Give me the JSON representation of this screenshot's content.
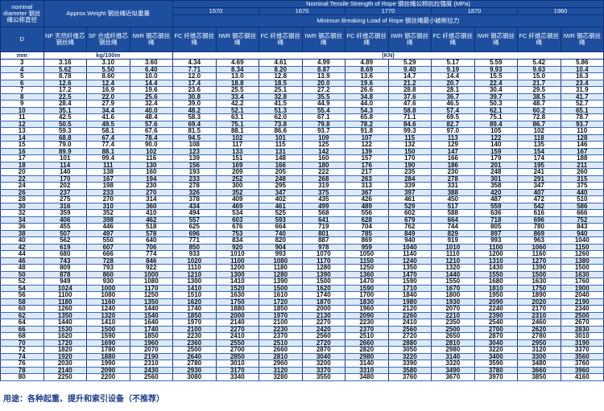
{
  "header": {
    "diameter_label": "nominal diameter 钢丝绳公称直径",
    "weight_label": "Approx.Weight 钢丝绳近似重量",
    "tensile_label": "Nominal Tensile Strength of Rope 钢丝绳公称抗拉强度 (MPa)",
    "grades": [
      "1570",
      "1670",
      "1770",
      "1870",
      "1960"
    ],
    "breaking_label": "Minimun Breaking Load of Rope 钢丝绳最小破断拉力",
    "columns": [
      "D",
      "NF 天然纤维芯钢丝绳",
      "SF 合成纤维芯钢丝绳",
      "IWR 钢芯钢丝绳",
      "FC 纤维芯钢丝绳",
      "IWR 钢芯钢丝绳",
      "FC 纤维芯钢丝绳",
      "IWR 钢芯钢丝绳",
      "FC 纤维芯钢丝绳",
      "IWR 钢芯钢丝绳",
      "FC 纤维芯钢丝绳",
      "IWR 钢芯钢丝绳",
      "FC 纤维芯钢丝绳",
      "IWR 钢芯钢丝绳"
    ],
    "units": {
      "diameter": "mm",
      "weight": "kg/100m",
      "load": "(KN)"
    }
  },
  "rows": [
    [
      "3",
      "3.16",
      "3.10",
      "3.60",
      "4.34",
      "4.69",
      "4.61",
      "4.99",
      "4.89",
      "5.29",
      "5.17",
      "5.59",
      "5.42",
      "5.86"
    ],
    [
      "4",
      "5.62",
      "5.50",
      "6.40",
      "7.71",
      "8.34",
      "8.20",
      "8.87",
      "8.69",
      "9.40",
      "9.19",
      "9.93",
      "9.63",
      "10.4"
    ],
    [
      "5",
      "8.78",
      "8.60",
      "10.0",
      "12.0",
      "13.0",
      "12.8",
      "13.9",
      "13.6",
      "14.7",
      "14.4",
      "15.5",
      "15.0",
      "16.3"
    ],
    [
      "6",
      "12.6",
      "12.4",
      "14.4",
      "17.4",
      "18.8",
      "18.5",
      "20.0",
      "19.6",
      "21.2",
      "20.7",
      "22.4",
      "21.7",
      "23.4"
    ],
    [
      "7",
      "17.2",
      "16.9",
      "19.6",
      "23.6",
      "25.5",
      "25.1",
      "27.2",
      "26.6",
      "28.8",
      "28.1",
      "30.4",
      "29.5",
      "31.9"
    ],
    [
      "8",
      "22.5",
      "22.0",
      "25.6",
      "30.8",
      "33.4",
      "32.8",
      "35.5",
      "34.8",
      "37.6",
      "36.7",
      "39.7",
      "38.5",
      "41.7"
    ],
    [
      "9",
      "28.4",
      "27.9",
      "32.4",
      "39.0",
      "42.2",
      "41.5",
      "44.9",
      "44.0",
      "47.6",
      "46.5",
      "50.3",
      "48.7",
      "52.7"
    ],
    [
      "10",
      "35.1",
      "34.4",
      "40.0",
      "48.2",
      "52.1",
      "51.3",
      "55.4",
      "54.3",
      "58.8",
      "57.4",
      "62.1",
      "60.2",
      "65.1"
    ],
    [
      "11",
      "42.5",
      "41.6",
      "48.4",
      "58.3",
      "63.1",
      "62.0",
      "67.1",
      "65.8",
      "71.1",
      "69.5",
      "75.1",
      "72.8",
      "78.7"
    ],
    [
      "12",
      "50.5",
      "49.5",
      "57.6",
      "69.4",
      "75.1",
      "73.8",
      "79.8",
      "78.2",
      "84.6",
      "82.7",
      "89.4",
      "86.7",
      "93.7"
    ],
    [
      "13",
      "59.3",
      "58.1",
      "67.6",
      "81.5",
      "88.1",
      "86.6",
      "93.7",
      "91.8",
      "99.3",
      "97.0",
      "105",
      "102",
      "110"
    ],
    [
      "14",
      "68.8",
      "67.4",
      "78.4",
      "94.5",
      "102",
      "101",
      "109",
      "107",
      "115",
      "113",
      "122",
      "118",
      "128"
    ],
    [
      "15",
      "79.0",
      "77.4",
      "90.0",
      "108",
      "117",
      "115",
      "125",
      "122",
      "132",
      "129",
      "140",
      "135",
      "146"
    ],
    [
      "16",
      "89.9",
      "88.1",
      "102",
      "123",
      "133",
      "131",
      "142",
      "139",
      "150",
      "147",
      "159",
      "154",
      "167"
    ],
    [
      "17",
      "101",
      "99.4",
      "116",
      "139",
      "151",
      "148",
      "160",
      "157",
      "170",
      "166",
      "179",
      "174",
      "188"
    ],
    [
      "18",
      "114",
      "111",
      "130",
      "156",
      "169",
      "166",
      "180",
      "176",
      "190",
      "186",
      "201",
      "195",
      "211"
    ],
    [
      "20",
      "140",
      "138",
      "160",
      "193",
      "209",
      "205",
      "222",
      "217",
      "235",
      "230",
      "248",
      "241",
      "260"
    ],
    [
      "22",
      "170",
      "167",
      "194",
      "233",
      "252",
      "248",
      "268",
      "263",
      "284",
      "278",
      "301",
      "291",
      "315"
    ],
    [
      "24",
      "202",
      "198",
      "230",
      "278",
      "300",
      "295",
      "319",
      "313",
      "339",
      "331",
      "358",
      "347",
      "375"
    ],
    [
      "26",
      "237",
      "233",
      "270",
      "326",
      "352",
      "347",
      "375",
      "367",
      "397",
      "388",
      "420",
      "407",
      "440"
    ],
    [
      "28",
      "275",
      "270",
      "314",
      "378",
      "409",
      "402",
      "435",
      "426",
      "461",
      "450",
      "487",
      "472",
      "510"
    ],
    [
      "30",
      "316",
      "310",
      "360",
      "434",
      "469",
      "461",
      "499",
      "489",
      "529",
      "517",
      "559",
      "542",
      "586"
    ],
    [
      "32",
      "359",
      "352",
      "410",
      "494",
      "534",
      "525",
      "568",
      "556",
      "602",
      "588",
      "636",
      "616",
      "666"
    ],
    [
      "34",
      "406",
      "398",
      "462",
      "557",
      "603",
      "593",
      "641",
      "628",
      "679",
      "664",
      "718",
      "696",
      "752"
    ],
    [
      "36",
      "455",
      "446",
      "518",
      "625",
      "676",
      "664",
      "719",
      "704",
      "762",
      "744",
      "805",
      "780",
      "843"
    ],
    [
      "38",
      "507",
      "497",
      "578",
      "696",
      "753",
      "740",
      "801",
      "785",
      "849",
      "829",
      "897",
      "869",
      "940"
    ],
    [
      "40",
      "562",
      "550",
      "640",
      "771",
      "834",
      "820",
      "887",
      "869",
      "940",
      "919",
      "993",
      "963",
      "1040"
    ],
    [
      "42",
      "619",
      "607",
      "706",
      "850",
      "920",
      "904",
      "978",
      "959",
      "1040",
      "1010",
      "1100",
      "1060",
      "1150"
    ],
    [
      "44",
      "680",
      "666",
      "774",
      "933",
      "1010",
      "993",
      "1070",
      "1050",
      "1140",
      "1110",
      "1200",
      "1160",
      "1260"
    ],
    [
      "46",
      "743",
      "728",
      "846",
      "1020",
      "1100",
      "1080",
      "1170",
      "1150",
      "1240",
      "1210",
      "1310",
      "1270",
      "1380"
    ],
    [
      "48",
      "809",
      "793",
      "922",
      "1110",
      "1200",
      "1180",
      "1280",
      "1250",
      "1350",
      "1320",
      "1430",
      "1390",
      "1500"
    ],
    [
      "50",
      "878",
      "860",
      "1000",
      "1210",
      "1300",
      "1280",
      "1390",
      "1360",
      "1470",
      "1440",
      "1550",
      "1500",
      "1630"
    ],
    [
      "52",
      "949",
      "930",
      "1080",
      "1300",
      "1410",
      "1390",
      "1500",
      "1470",
      "1590",
      "1550",
      "1680",
      "1630",
      "1760"
    ],
    [
      "54",
      "1024",
      "1000",
      "1170",
      "1410",
      "1520",
      "1500",
      "1620",
      "1590",
      "1710",
      "1670",
      "1810",
      "1750",
      "1900"
    ],
    [
      "56",
      "1100",
      "1080",
      "1250",
      "1510",
      "1630",
      "1610",
      "1740",
      "1700",
      "1840",
      "1800",
      "1950",
      "1890",
      "2040"
    ],
    [
      "58",
      "1180",
      "1160",
      "1350",
      "1620",
      "1750",
      "1720",
      "1870",
      "1830",
      "1980",
      "1930",
      "2090",
      "2020",
      "2190"
    ],
    [
      "60",
      "1260",
      "1240",
      "1440",
      "1740",
      "1880",
      "1850",
      "2000",
      "1960",
      "2120",
      "2070",
      "2240",
      "2170",
      "2340"
    ],
    [
      "62",
      "1350",
      "1320",
      "1540",
      "1850",
      "2000",
      "1970",
      "2130",
      "2090",
      "2260",
      "2210",
      "2390",
      "2310",
      "2500"
    ],
    [
      "64",
      "1440",
      "1410",
      "1640",
      "1970",
      "2140",
      "2100",
      "2270",
      "2230",
      "2410",
      "2350",
      "2540",
      "2460",
      "2670"
    ],
    [
      "66",
      "1530",
      "1500",
      "1740",
      "2100",
      "2270",
      "2230",
      "2420",
      "2370",
      "2560",
      "2500",
      "2700",
      "2620",
      "2830"
    ],
    [
      "68",
      "1620",
      "1590",
      "1850",
      "2230",
      "2410",
      "2370",
      "2560",
      "2510",
      "2720",
      "2650",
      "2870",
      "2780",
      "3010"
    ],
    [
      "70",
      "1720",
      "1690",
      "1960",
      "2360",
      "2550",
      "2510",
      "2720",
      "2660",
      "2880",
      "2810",
      "3040",
      "2950",
      "3190"
    ],
    [
      "72",
      "1820",
      "1780",
      "2070",
      "2500",
      "2700",
      "2660",
      "2870",
      "2820",
      "3050",
      "2980",
      "3220",
      "3120",
      "3370"
    ],
    [
      "74",
      "1920",
      "1880",
      "2190",
      "2640",
      "2850",
      "2810",
      "3040",
      "2980",
      "3220",
      "3140",
      "3400",
      "3300",
      "3560"
    ],
    [
      "76",
      "2030",
      "1990",
      "2310",
      "2780",
      "3010",
      "2960",
      "3200",
      "3140",
      "3390",
      "3320",
      "3590",
      "3480",
      "3760"
    ],
    [
      "78",
      "2140",
      "2090",
      "2430",
      "2930",
      "3170",
      "3120",
      "3370",
      "3310",
      "3580",
      "3490",
      "3780",
      "3660",
      "3960"
    ],
    [
      "80",
      "2250",
      "2200",
      "2560",
      "3080",
      "3340",
      "3280",
      "3550",
      "3480",
      "3760",
      "3670",
      "3970",
      "3850",
      "4160"
    ]
  ],
  "footer": "用途：各种起重、提升和索引设备（不推荐）",
  "colors": {
    "header_bg": "#1d4f9e",
    "row_alt": "#dde9f8",
    "border": "#12307a"
  }
}
